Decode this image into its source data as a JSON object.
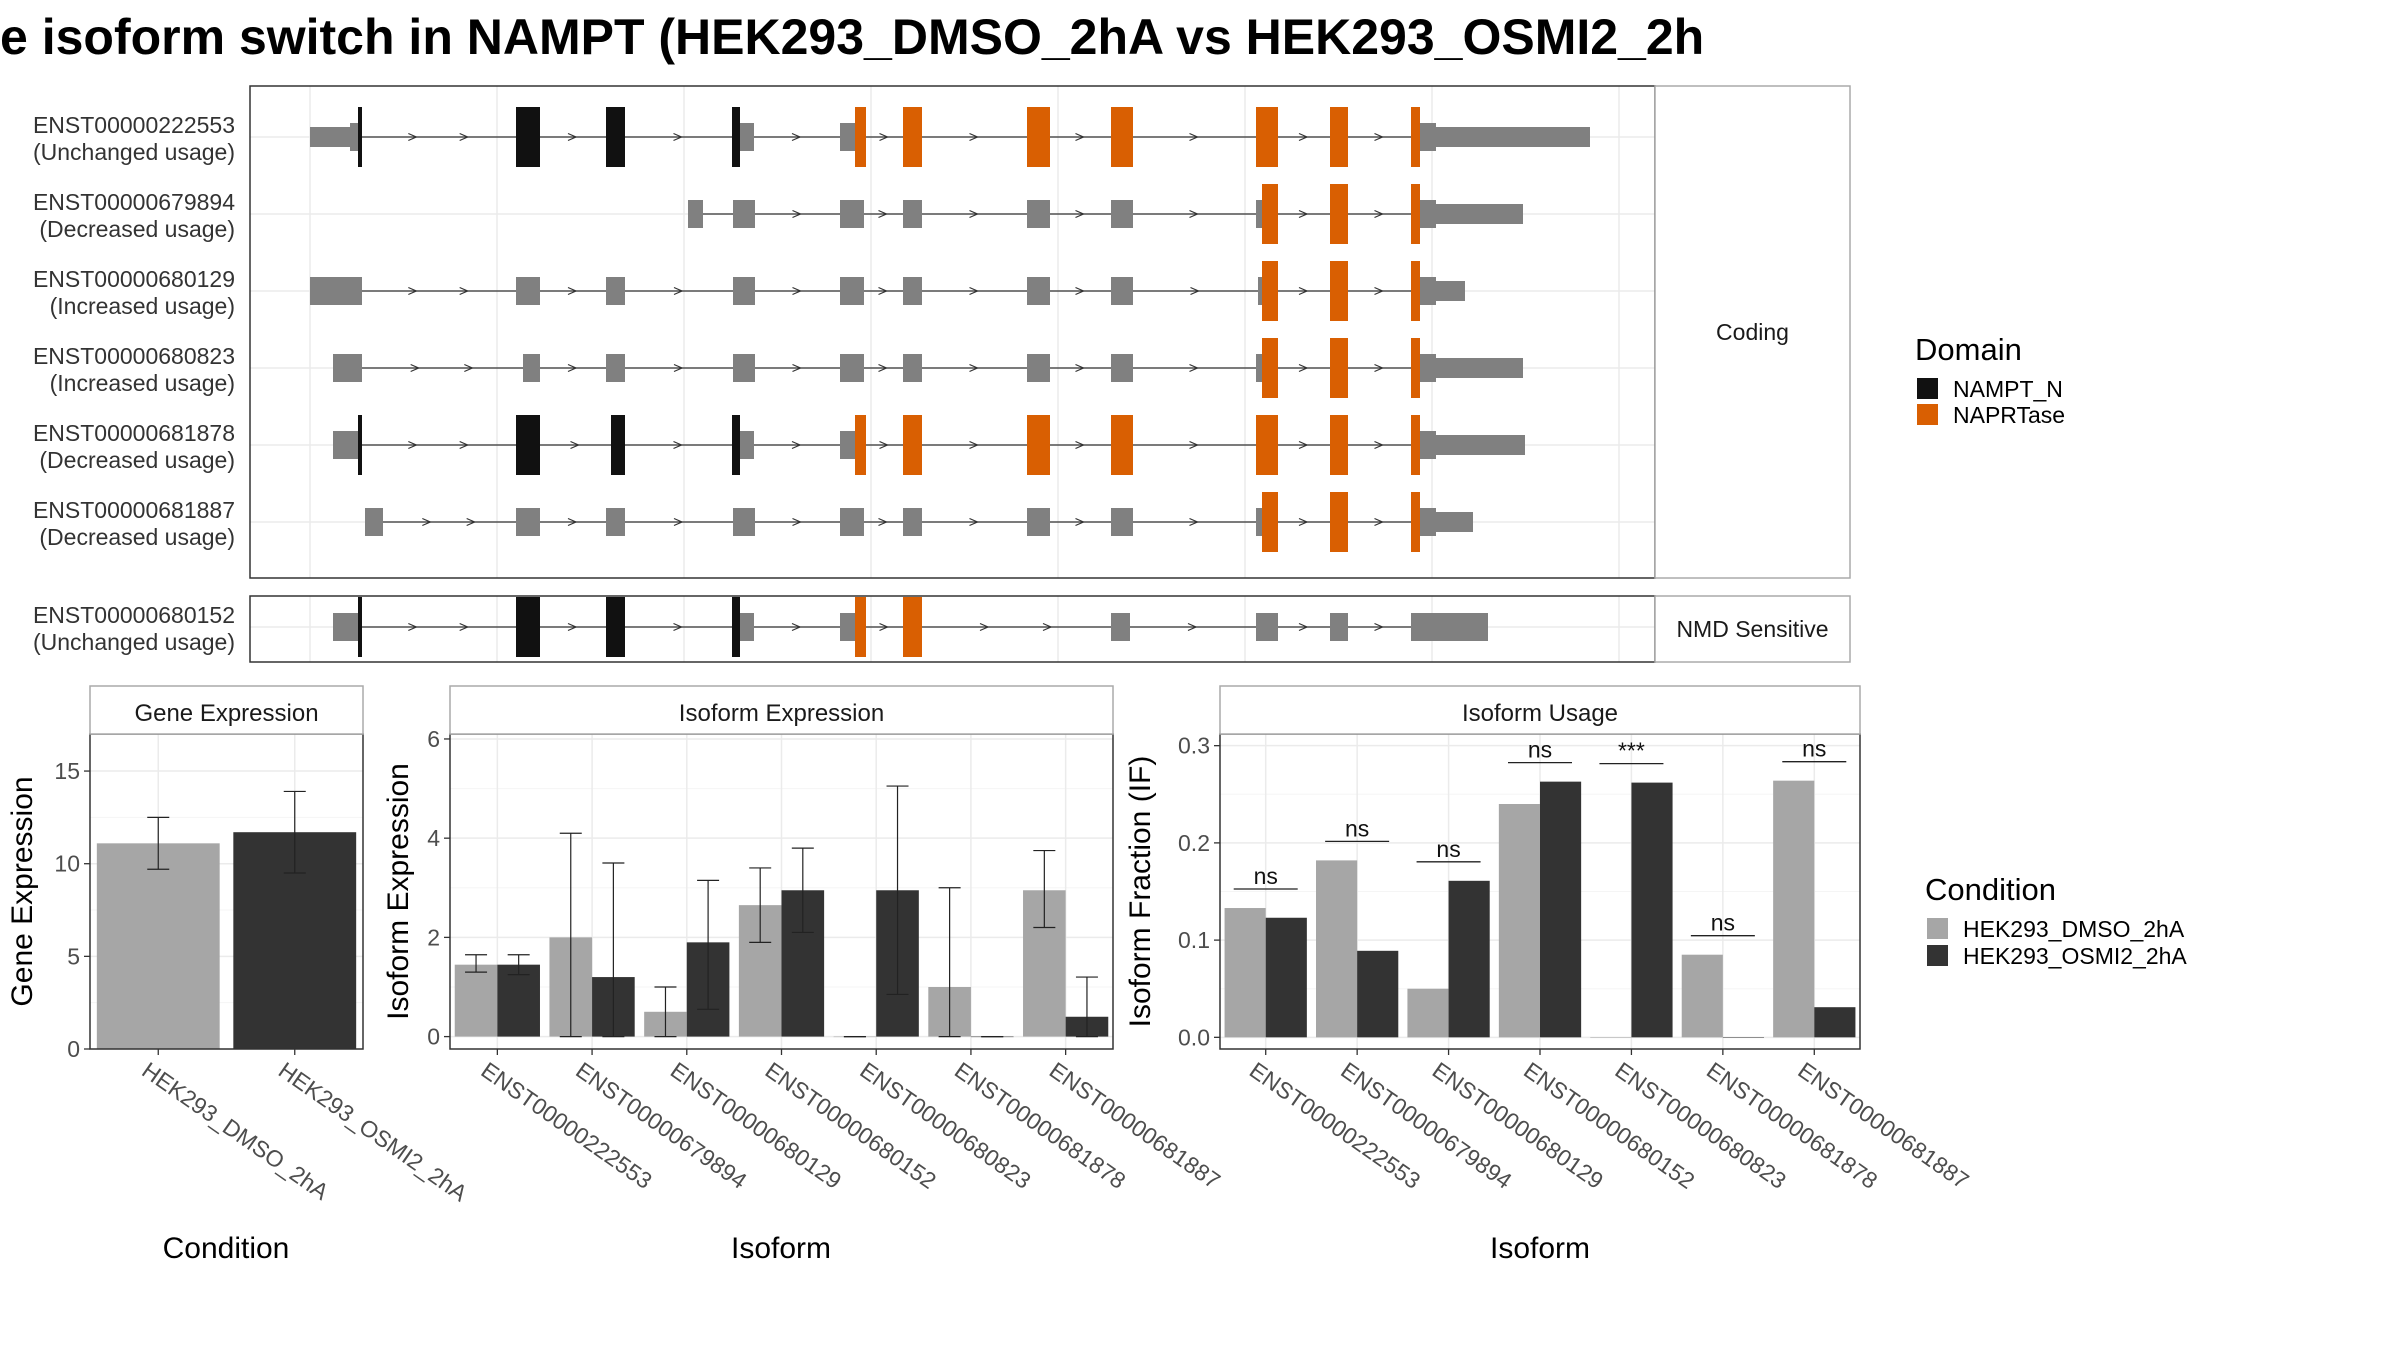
{
  "title": "e isoform switch in NAMPT (HEK293_DMSO_2hA vs HEK293_OSMI2_2h",
  "colors": {
    "nampt_n": "#111111",
    "naprtase": "#d95f02",
    "utr": "#808080",
    "dmso": "#a6a6a6",
    "osmi2": "#333333"
  },
  "chart_data": [
    {
      "type": "gene-structure",
      "panels": [
        {
          "label": "Coding",
          "rows": [
            {
              "id": "ENST00000222553",
              "usage": "(Unchanged usage)"
            },
            {
              "id": "ENST00000679894",
              "usage": "(Decreased usage)"
            },
            {
              "id": "ENST00000680129",
              "usage": "(Increased usage)"
            },
            {
              "id": "ENST00000680823",
              "usage": "(Increased usage)"
            },
            {
              "id": "ENST00000681878",
              "usage": "(Decreased usage)"
            },
            {
              "id": "ENST00000681887",
              "usage": "(Decreased usage)"
            }
          ]
        },
        {
          "label": "NMD Sensitive",
          "rows": [
            {
              "id": "ENST00000680152",
              "usage": "(Unchanged usage)"
            }
          ]
        }
      ],
      "legend": {
        "title": "Domain",
        "items": [
          "NAMPT_N",
          "NAPRTase"
        ]
      }
    },
    {
      "type": "bar",
      "title": "Gene Expression",
      "xlabel": "Condition",
      "ylabel": "Gene Expression",
      "categories": [
        "HEK293_DMSO_2hA",
        "HEK293_OSMI2_2hA"
      ],
      "values": [
        11.1,
        11.7
      ],
      "err_low": [
        9.7,
        9.5
      ],
      "err_high": [
        12.5,
        13.9
      ],
      "ylim": [
        0,
        17
      ],
      "yticks": [
        0,
        5,
        10,
        15
      ]
    },
    {
      "type": "bar",
      "title": "Isoform Expression",
      "xlabel": "Isoform",
      "ylabel": "Isoform Expression",
      "categories": [
        "ENST00000222553",
        "ENST00000679894",
        "ENST00000680129",
        "ENST00000680152",
        "ENST00000680823",
        "ENST00000681878",
        "ENST00000681887"
      ],
      "series": [
        {
          "name": "HEK293_DMSO_2hA",
          "values": [
            1.45,
            2.0,
            0.5,
            2.65,
            0.0,
            1.0,
            2.95
          ],
          "err_low": [
            1.3,
            0.0,
            0.0,
            1.9,
            0.0,
            0.0,
            2.2
          ],
          "err_high": [
            1.65,
            4.1,
            1.0,
            3.4,
            0.0,
            3.0,
            3.75
          ]
        },
        {
          "name": "HEK293_OSMI2_2hA",
          "values": [
            1.45,
            1.2,
            1.9,
            2.95,
            2.95,
            0.0,
            0.4
          ],
          "err_low": [
            1.25,
            0.0,
            0.55,
            2.1,
            0.85,
            0.0,
            0.0
          ],
          "err_high": [
            1.65,
            3.5,
            3.15,
            3.8,
            5.05,
            0.0,
            1.2
          ]
        }
      ],
      "ylim": [
        -0.25,
        6.1
      ],
      "yticks": [
        0,
        2,
        4,
        6
      ]
    },
    {
      "type": "bar",
      "title": "Isoform Usage",
      "xlabel": "Isoform",
      "ylabel": "Isoform Fraction (IF)",
      "categories": [
        "ENST00000222553",
        "ENST00000679894",
        "ENST00000680129",
        "ENST00000680152",
        "ENST00000680823",
        "ENST00000681878",
        "ENST00000681887"
      ],
      "series": [
        {
          "name": "HEK293_DMSO_2hA",
          "values": [
            0.133,
            0.182,
            0.05,
            0.24,
            0.0,
            0.085,
            0.264
          ]
        },
        {
          "name": "HEK293_OSMI2_2hA",
          "values": [
            0.123,
            0.089,
            0.161,
            0.263,
            0.262,
            0.0,
            0.031
          ]
        }
      ],
      "significance": [
        "ns",
        "ns",
        "ns",
        "ns",
        "***",
        "ns",
        "ns"
      ],
      "ylim": [
        -0.012,
        0.312
      ],
      "yticks": [
        0.0,
        0.1,
        0.2,
        0.3
      ],
      "ytick_labels": [
        "0.0",
        "0.1",
        "0.2",
        "0.3"
      ],
      "legend": {
        "title": "Condition",
        "items": [
          "HEK293_DMSO_2hA",
          "HEK293_OSMI2_2hA"
        ]
      }
    }
  ]
}
